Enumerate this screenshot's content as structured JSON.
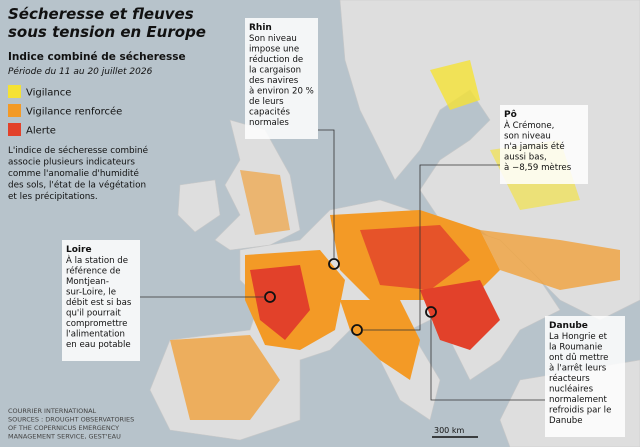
{
  "header": {
    "title_lines": [
      "Sécheresse et fleuves",
      "sous tension en Europe"
    ],
    "legend_title": "Indice combiné de sécheresse",
    "period": "Période du 11 au 20 juillet 2026"
  },
  "legend": [
    {
      "label": "Vigilance",
      "color": "#f5e234"
    },
    {
      "label": "Vigilance renforcée",
      "color": "#f39a26"
    },
    {
      "label": "Alerte",
      "color": "#e2412a"
    }
  ],
  "description": [
    "L'indice de sécheresse combiné",
    "associe plusieurs indicateurs",
    "comme l'anomalie d'humidité",
    "des sols, l'état de la végétation",
    "et les précipitations."
  ],
  "callouts": [
    {
      "title": "Rhin",
      "lines": [
        "Son niveau",
        "impose une",
        "réduction de",
        "la cargaison",
        "des navires",
        "à environ 20 %",
        "de leurs",
        "capacités",
        "normales"
      ]
    },
    {
      "title": "Pô",
      "lines": [
        "À Crémone,",
        "son niveau",
        "n'a jamais été",
        "aussi bas,",
        "à −8,59 mètres"
      ]
    },
    {
      "title": "Loire",
      "lines": [
        "À la station de",
        "référence de",
        "Montjean-",
        "sur-Loire, le",
        "débit est si bas",
        "qu'il pourrait",
        "compromettre",
        "l'alimentation",
        "en eau potable"
      ]
    },
    {
      "title": "Danube",
      "lines": [
        "La Hongrie et",
        "la Roumanie",
        "ont dû mettre",
        "à l'arrêt leurs",
        "réacteurs",
        "nucléaires",
        "normalement",
        "refroidis par le",
        "Danube"
      ]
    }
  ],
  "scale": "300 km",
  "source": [
    "COURRIER INTERNATIONAL",
    "SOURCES : DROUGHT OBSERVATORIES",
    "OF THE COPERNICUS EMERGENCY",
    "MANAGEMENT SERVICE, GEST'EAU"
  ]
}
